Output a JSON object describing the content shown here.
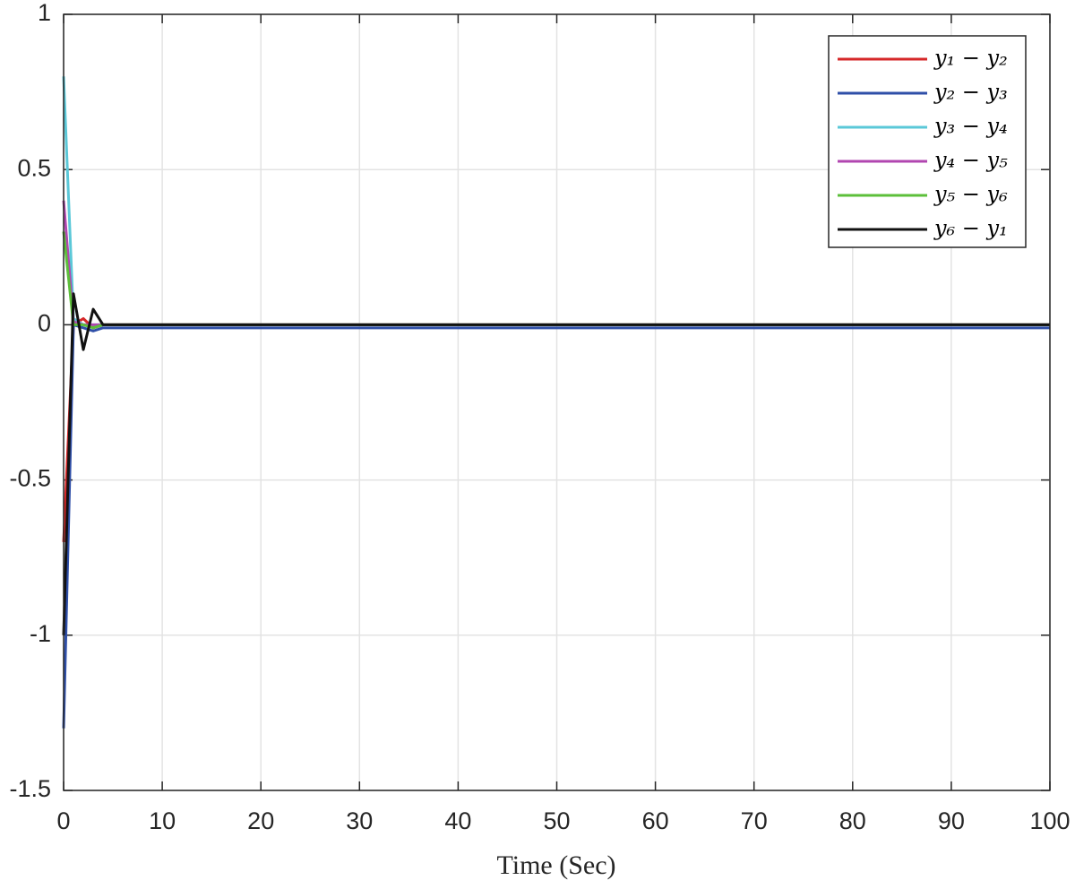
{
  "chart_data": {
    "type": "line",
    "x_label": "Time (Sec)",
    "x": [
      0,
      1,
      2,
      3,
      4,
      5,
      100
    ],
    "series": [
      {
        "name": "y₁ − y₂",
        "color": "#d62728",
        "values": [
          -0.7,
          0.0,
          0.02,
          -0.01,
          0.0,
          0.0,
          0.0
        ]
      },
      {
        "name": "y₂ − y₃",
        "color": "#2f4fa8",
        "values": [
          -1.3,
          0.0,
          -0.01,
          -0.02,
          -0.01,
          -0.01,
          -0.01
        ]
      },
      {
        "name": "y₃ − y₄",
        "color": "#5bc8d8",
        "values": [
          0.8,
          0.02,
          0.0,
          0.0,
          0.0,
          0.0,
          0.0
        ]
      },
      {
        "name": "y₄ − y₅",
        "color": "#b146b0",
        "values": [
          0.4,
          0.01,
          0.0,
          0.0,
          0.0,
          0.0,
          0.0
        ]
      },
      {
        "name": "y₅ − y₆",
        "color": "#5cbf3a",
        "values": [
          0.3,
          0.0,
          0.0,
          -0.01,
          0.0,
          0.0,
          0.0
        ]
      },
      {
        "name": "y₆ − y₁",
        "color": "#111111",
        "values": [
          -1.0,
          0.1,
          -0.08,
          0.05,
          0.0,
          0.0,
          0.0
        ]
      }
    ],
    "xlim": [
      0,
      100
    ],
    "xticks": [
      0,
      10,
      20,
      30,
      40,
      50,
      60,
      70,
      80,
      90,
      100
    ],
    "ylim": [
      -1.5,
      1
    ],
    "yticks": [
      -1.5,
      -1,
      -0.5,
      0,
      0.5,
      1
    ],
    "grid": true,
    "legend": "upper right"
  }
}
